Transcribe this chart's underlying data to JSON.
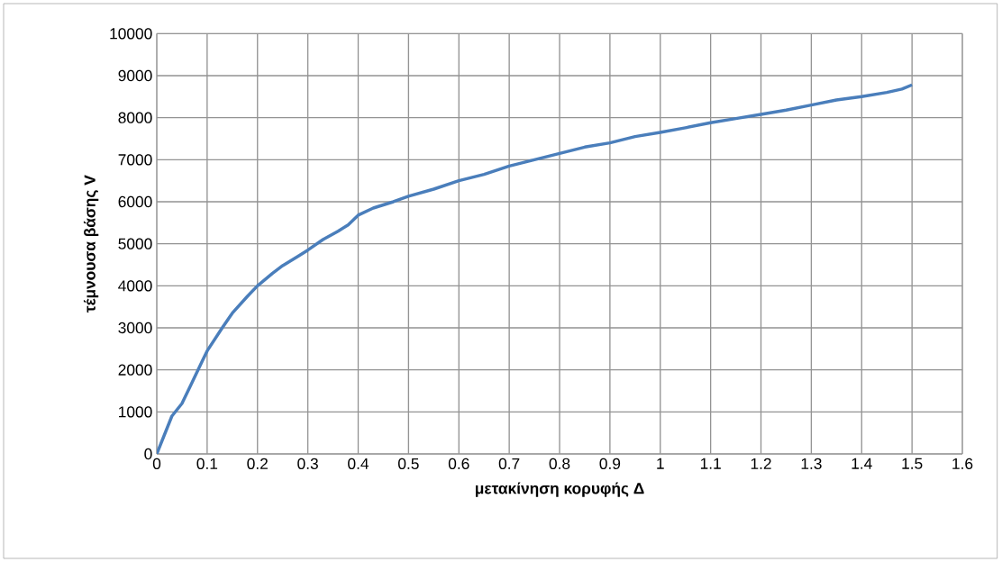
{
  "chart_data": {
    "type": "line",
    "xlabel": "μετακίνηση κορυφής Δ",
    "ylabel": "τέμνουσα βάσης V",
    "xlim": [
      0,
      1.6
    ],
    "xticks": [
      0,
      0.1,
      0.2,
      0.3,
      0.4,
      0.5,
      0.6,
      0.7,
      0.8,
      0.9,
      1,
      1.1,
      1.2,
      1.3,
      1.4,
      1.5,
      1.6
    ],
    "ylim": [
      0,
      10000
    ],
    "yticks": [
      0,
      1000,
      2000,
      3000,
      4000,
      5000,
      6000,
      7000,
      8000,
      9000,
      10000
    ],
    "grid": true,
    "marker": "none",
    "line_style": "solid",
    "series": [
      {
        "color": "#4a7ebb",
        "x": [
          0,
          0.02,
          0.03,
          0.05,
          0.07,
          0.09,
          0.1,
          0.13,
          0.15,
          0.18,
          0.2,
          0.23,
          0.25,
          0.28,
          0.3,
          0.33,
          0.36,
          0.38,
          0.4,
          0.43,
          0.47,
          0.5,
          0.55,
          0.6,
          0.65,
          0.7,
          0.75,
          0.8,
          0.85,
          0.9,
          0.95,
          1.0,
          1.05,
          1.1,
          1.15,
          1.2,
          1.25,
          1.3,
          1.35,
          1.4,
          1.45,
          1.48,
          1.5
        ],
        "values": [
          0,
          600,
          900,
          1200,
          1700,
          2200,
          2450,
          3000,
          3350,
          3750,
          4000,
          4300,
          4480,
          4700,
          4850,
          5100,
          5300,
          5450,
          5680,
          5850,
          6000,
          6130,
          6300,
          6500,
          6650,
          6850,
          7000,
          7150,
          7300,
          7400,
          7550,
          7650,
          7760,
          7880,
          7980,
          8080,
          8180,
          8300,
          8420,
          8500,
          8600,
          8680,
          8780
        ]
      }
    ]
  }
}
